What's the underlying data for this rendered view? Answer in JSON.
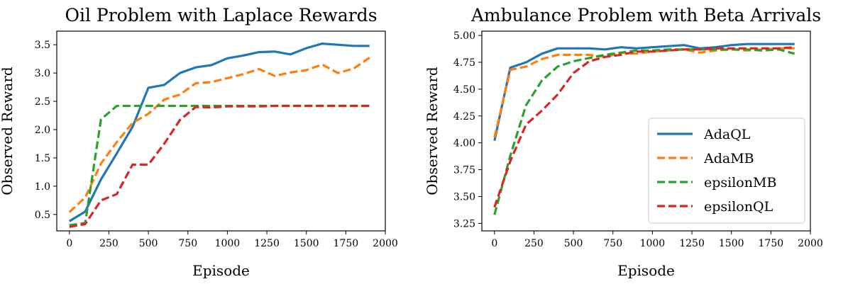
{
  "chart_data": [
    {
      "type": "line",
      "title": "Oil Problem with Laplace Rewards",
      "xlabel": "Episode",
      "ylabel": "Observed Reward",
      "xlim": [
        -80,
        2000
      ],
      "ylim": [
        0.21,
        3.74
      ],
      "xticks": [
        0,
        250,
        500,
        750,
        1000,
        1250,
        1500,
        1750,
        2000
      ],
      "yticks": [
        0.5,
        1.0,
        1.5,
        2.0,
        2.5,
        3.0,
        3.5
      ],
      "ytick_labels": [
        "0.5",
        "1.0",
        "1.5",
        "2.0",
        "2.5",
        "3.0",
        "3.5"
      ],
      "grid": false,
      "legend": null,
      "x": [
        0,
        100,
        200,
        300,
        400,
        500,
        600,
        700,
        800,
        900,
        1000,
        1100,
        1200,
        1300,
        1400,
        1500,
        1600,
        1700,
        1800,
        1900
      ],
      "series": [
        {
          "name": "AdaQL",
          "color": "#1f77b4",
          "dash": "solid",
          "values": [
            0.38,
            0.55,
            1.12,
            1.58,
            2.05,
            2.74,
            2.79,
            3.0,
            3.1,
            3.14,
            3.26,
            3.31,
            3.37,
            3.38,
            3.33,
            3.44,
            3.52,
            3.5,
            3.48,
            3.48
          ]
        },
        {
          "name": "AdaMB",
          "color": "#ff7f0e",
          "dash": "dashed",
          "values": [
            0.54,
            0.8,
            1.4,
            1.78,
            2.12,
            2.28,
            2.53,
            2.62,
            2.82,
            2.84,
            2.91,
            2.98,
            3.07,
            2.95,
            3.01,
            3.05,
            3.15,
            3.0,
            3.08,
            3.27
          ]
        },
        {
          "name": "epsilonMB",
          "color": "#2ca02c",
          "dash": "dashed",
          "values": [
            0.31,
            0.35,
            2.18,
            2.42,
            2.42,
            2.42,
            2.42,
            2.42,
            2.42,
            2.42,
            2.42,
            2.42,
            2.42,
            2.42,
            2.42,
            2.42,
            2.42,
            2.42,
            2.42,
            2.42
          ]
        },
        {
          "name": "epsilonQL",
          "color": "#d62728",
          "dash": "dashed",
          "values": [
            0.28,
            0.33,
            0.75,
            0.86,
            1.38,
            1.38,
            1.75,
            2.17,
            2.4,
            2.39,
            2.41,
            2.41,
            2.41,
            2.42,
            2.42,
            2.42,
            2.42,
            2.42,
            2.42,
            2.42
          ]
        }
      ]
    },
    {
      "type": "line",
      "title": "Ambulance Problem with Beta Arrivals",
      "xlabel": "Episode",
      "ylabel": "Observed Reward",
      "xlim": [
        -80,
        2000
      ],
      "ylim": [
        3.18,
        5.04
      ],
      "xticks": [
        0,
        250,
        500,
        750,
        1000,
        1250,
        1500,
        1750,
        2000
      ],
      "yticks": [
        3.25,
        3.5,
        3.75,
        4.0,
        4.25,
        4.5,
        4.75,
        5.0
      ],
      "ytick_labels": [
        "3.25",
        "3.50",
        "3.75",
        "4.00",
        "4.25",
        "4.50",
        "4.75",
        "5.00"
      ],
      "grid": false,
      "legend": "lower right",
      "x": [
        0,
        100,
        200,
        300,
        400,
        500,
        600,
        700,
        800,
        900,
        1000,
        1100,
        1200,
        1300,
        1400,
        1500,
        1600,
        1700,
        1800,
        1900
      ],
      "series": [
        {
          "name": "AdaQL",
          "color": "#1f77b4",
          "dash": "solid",
          "values": [
            4.02,
            4.7,
            4.75,
            4.83,
            4.88,
            4.88,
            4.88,
            4.87,
            4.89,
            4.88,
            4.89,
            4.9,
            4.91,
            4.88,
            4.89,
            4.91,
            4.92,
            4.92,
            4.92,
            4.92
          ]
        },
        {
          "name": "AdaMB",
          "color": "#ff7f0e",
          "dash": "dashed",
          "values": [
            4.05,
            4.68,
            4.71,
            4.78,
            4.82,
            4.82,
            4.82,
            4.8,
            4.84,
            4.83,
            4.85,
            4.86,
            4.87,
            4.84,
            4.86,
            4.87,
            4.86,
            4.87,
            4.88,
            4.88
          ]
        },
        {
          "name": "epsilonMB",
          "color": "#2ca02c",
          "dash": "dashed",
          "values": [
            3.33,
            3.88,
            4.35,
            4.58,
            4.71,
            4.76,
            4.79,
            4.82,
            4.84,
            4.86,
            4.86,
            4.87,
            4.87,
            4.87,
            4.87,
            4.87,
            4.87,
            4.86,
            4.87,
            4.83
          ]
        },
        {
          "name": "epsilonQL",
          "color": "#d62728",
          "dash": "dashed",
          "values": [
            3.4,
            3.83,
            4.17,
            4.3,
            4.45,
            4.65,
            4.76,
            4.8,
            4.82,
            4.85,
            4.85,
            4.86,
            4.87,
            4.87,
            4.88,
            4.88,
            4.88,
            4.88,
            4.88,
            4.89
          ]
        }
      ]
    }
  ]
}
